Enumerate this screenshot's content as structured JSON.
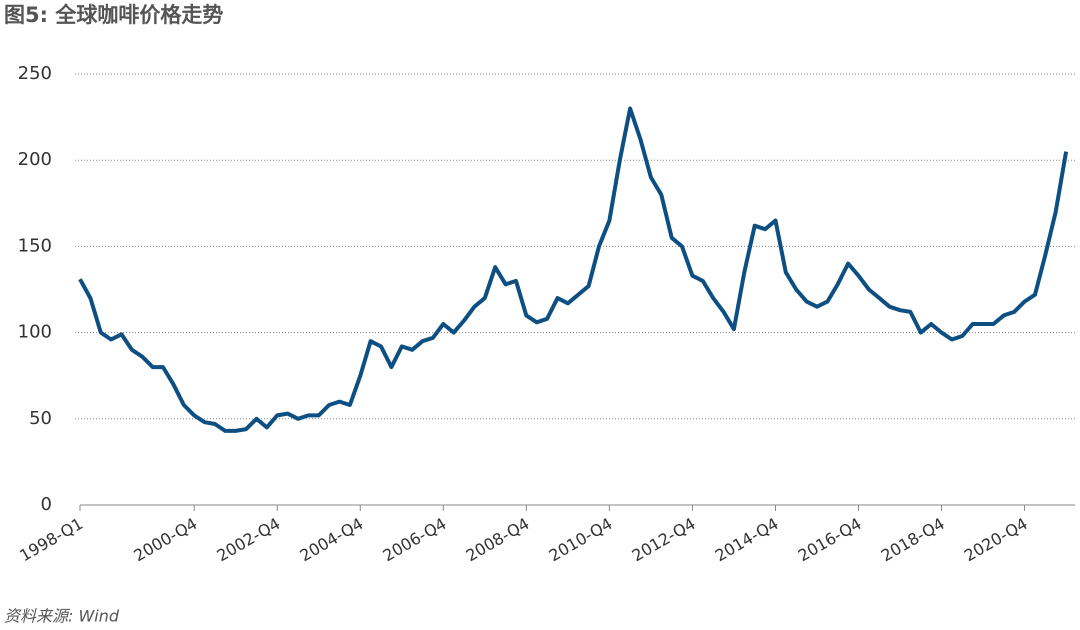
{
  "chart_data": {
    "type": "line",
    "title": "图5: 全球咖啡价格走势",
    "source": "资料来源: Wind",
    "categories": [
      "1998-Q1",
      null,
      null,
      null,
      null,
      null,
      null,
      null,
      null,
      null,
      null,
      "2000-Q4",
      null,
      null,
      null,
      null,
      null,
      null,
      null,
      "2002-Q4",
      null,
      null,
      null,
      null,
      null,
      null,
      null,
      "2004-Q4",
      null,
      null,
      null,
      null,
      null,
      null,
      null,
      "2006-Q4",
      null,
      null,
      null,
      null,
      null,
      null,
      null,
      "2008-Q4",
      null,
      null,
      null,
      null,
      null,
      null,
      null,
      "2010-Q4",
      null,
      null,
      null,
      null,
      null,
      null,
      null,
      "2012-Q4",
      null,
      null,
      null,
      null,
      null,
      null,
      null,
      "2014-Q4",
      null,
      null,
      null,
      null,
      null,
      null,
      null,
      "2016-Q4",
      null,
      null,
      null,
      null,
      null,
      null,
      null,
      "2018-Q4",
      null,
      null,
      null,
      null,
      null,
      null,
      null,
      "2020-Q4",
      null,
      null,
      null,
      null
    ],
    "series": [
      {
        "name": "全球咖啡价格",
        "color": "#0d4f82",
        "values": [
          131,
          120,
          100,
          96,
          99,
          90,
          86,
          80,
          80,
          70,
          58,
          52,
          48,
          47,
          43,
          43,
          44,
          50,
          45,
          52,
          53,
          50,
          52,
          52,
          58,
          60,
          58,
          75,
          95,
          92,
          80,
          92,
          90,
          95,
          97,
          105,
          100,
          107,
          115,
          120,
          138,
          128,
          130,
          110,
          106,
          108,
          120,
          117,
          122,
          127,
          150,
          165,
          200,
          230,
          212,
          190,
          180,
          155,
          150,
          133,
          130,
          120,
          112,
          102,
          135,
          162,
          160,
          165,
          135,
          125,
          118,
          115,
          118,
          128,
          140,
          133,
          125,
          120,
          115,
          113,
          112,
          100,
          105,
          100,
          96,
          98,
          105,
          105,
          105,
          110,
          112,
          118,
          122,
          145,
          170,
          205
        ]
      }
    ],
    "ylim": [
      0,
      250
    ],
    "yticks": [
      0,
      50,
      100,
      150,
      200,
      250
    ],
    "grid": true
  }
}
